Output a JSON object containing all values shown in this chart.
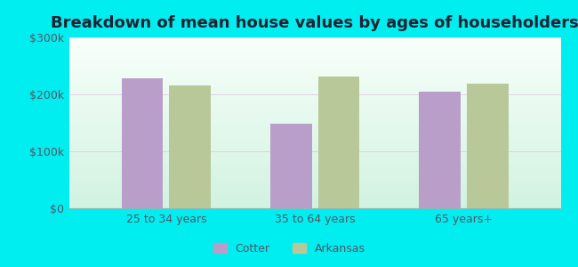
{
  "title": "Breakdown of mean house values by ages of householders",
  "categories": [
    "25 to 34 years",
    "35 to 64 years",
    "65 years+"
  ],
  "cotter_values": [
    228000,
    148000,
    205000
  ],
  "arkansas_values": [
    215000,
    232000,
    218000
  ],
  "cotter_color": "#b89ec8",
  "arkansas_color": "#b8c898",
  "ylim": [
    0,
    300000
  ],
  "yticks": [
    0,
    100000,
    200000,
    300000
  ],
  "ytick_labels": [
    "$0",
    "$100k",
    "$200k",
    "$300k"
  ],
  "background_color": "#00eef0",
  "legend_labels": [
    "Cotter",
    "Arkansas"
  ],
  "bar_width": 0.28,
  "title_fontsize": 13,
  "tick_fontsize": 9,
  "legend_fontsize": 9,
  "grid_color": "#ddaadd",
  "tick_color": "#555566"
}
